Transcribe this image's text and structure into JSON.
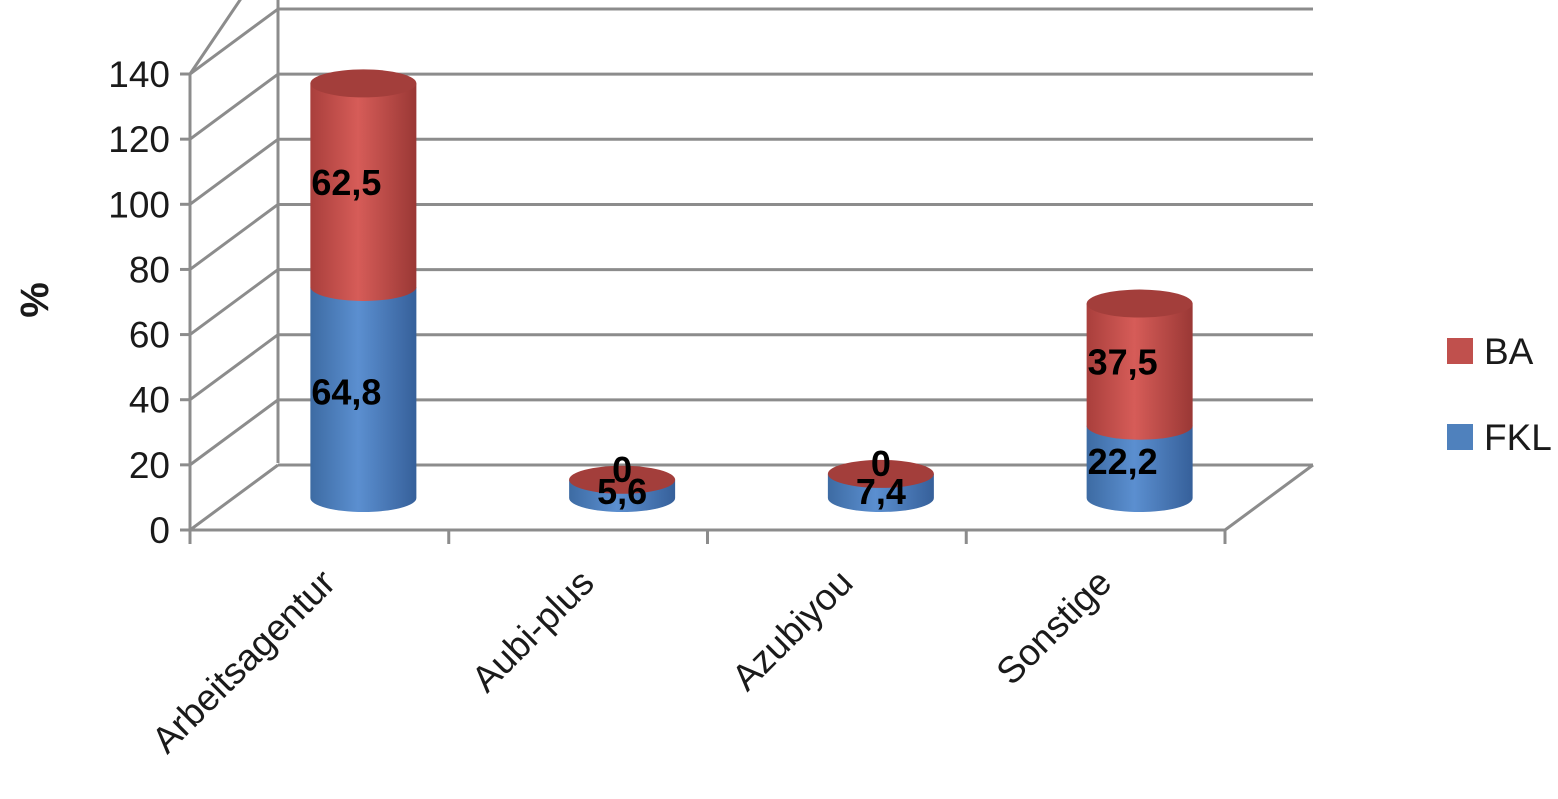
{
  "chart_data": {
    "type": "bar",
    "stacked": true,
    "style": "3d-cylinder",
    "title": "",
    "xlabel": "",
    "ylabel": "%",
    "ylim": [
      0,
      140
    ],
    "yticks": [
      0,
      20,
      40,
      60,
      80,
      100,
      120,
      140
    ],
    "grid": true,
    "legend_position": "right",
    "categories": [
      "Arbeitsagentur",
      "Aubi-plus",
      "Azubiyou",
      "Sonstige"
    ],
    "series": [
      {
        "name": "FKL",
        "values": [
          64.8,
          5.6,
          7.4,
          22.2
        ],
        "labels": [
          "64,8",
          "5,6",
          "7,4",
          "22,2"
        ],
        "color": "#4f81bd"
      },
      {
        "name": "BA",
        "values": [
          62.5,
          0,
          0,
          37.5
        ],
        "labels": [
          "62,5",
          "0",
          "0",
          "37,5"
        ],
        "color": "#c0504d"
      }
    ]
  }
}
